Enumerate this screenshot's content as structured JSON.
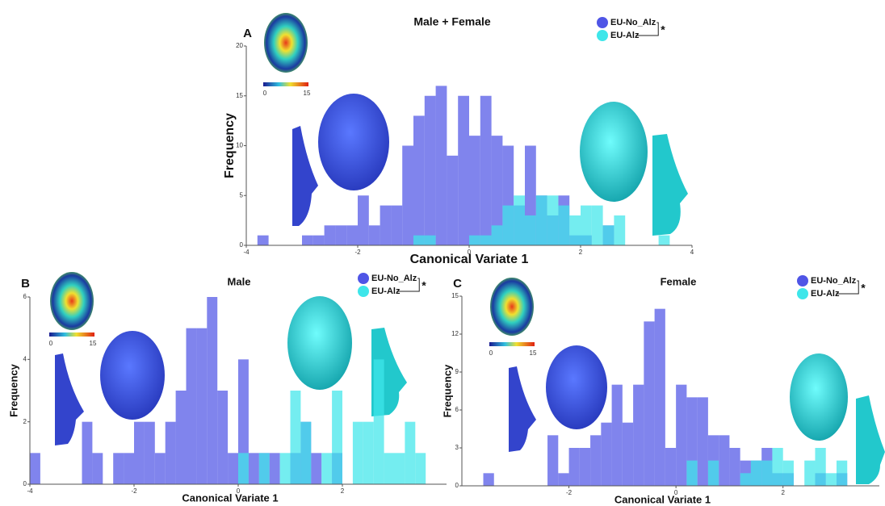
{
  "chart_data": [
    {
      "type": "histogram",
      "panel_label": "A",
      "title": "Male + Female",
      "x_label": "Canonical Variate 1",
      "y_label": "Frequency",
      "bins": [
        -4,
        -3.8,
        -3.6,
        -3.4,
        -3.2,
        -3,
        -2.8,
        -2.6,
        -2.4,
        -2.2,
        -2,
        -1.8,
        -1.6,
        -1.4,
        -1.2,
        -1,
        -0.8,
        -0.6,
        -0.4,
        -0.2,
        0,
        0.2,
        0.4,
        0.6,
        0.8,
        1,
        1.2,
        1.4,
        1.6,
        1.8,
        2,
        2.2,
        2.4,
        2.6,
        2.8,
        3,
        3.2,
        3.4,
        3.6,
        3.8,
        4
      ],
      "series": [
        {
          "name": "EU-No_Alz",
          "color": "#4f55e6",
          "values": [
            0,
            1,
            0,
            0,
            0,
            1,
            1,
            2,
            2,
            2,
            5,
            2,
            4,
            4,
            10,
            13,
            15,
            16,
            9,
            15,
            11,
            15,
            11,
            10,
            4,
            10,
            5,
            3,
            5,
            1,
            1,
            0,
            2,
            0,
            0,
            0,
            0,
            0,
            0,
            0
          ]
        },
        {
          "name": "EU-Alz",
          "color": "#3ee6ea",
          "values": [
            0,
            0,
            0,
            0,
            0,
            0,
            0,
            0,
            0,
            0,
            0,
            0,
            0,
            0,
            0,
            1,
            1,
            0,
            0,
            0,
            1,
            1,
            2,
            4,
            5,
            3,
            5,
            5,
            4,
            3,
            4,
            4,
            2,
            3,
            0,
            0,
            0,
            1,
            0,
            0
          ]
        }
      ],
      "significance": "*",
      "colorbar_labels": [
        "0",
        "15"
      ],
      "xlim": [
        -4,
        4
      ],
      "xticks": [
        -4,
        -2,
        0,
        2,
        4
      ],
      "ylim": [
        0,
        20
      ],
      "yticks": [
        0,
        5,
        10,
        15,
        20
      ]
    },
    {
      "type": "histogram",
      "panel_label": "B",
      "title": "Male",
      "x_label": "Canonical Variate 1",
      "y_label": "Frequency",
      "bins": [
        -4,
        -3.8,
        -3.6,
        -3.4,
        -3.2,
        -3,
        -2.8,
        -2.6,
        -2.4,
        -2.2,
        -2,
        -1.8,
        -1.6,
        -1.4,
        -1.2,
        -1,
        -0.8,
        -0.6,
        -0.4,
        -0.2,
        0,
        0.2,
        0.4,
        0.6,
        0.8,
        1,
        1.2,
        1.4,
        1.6,
        1.8,
        2,
        2.2,
        2.4,
        2.6,
        2.8,
        3,
        3.2,
        3.4,
        3.6,
        3.8,
        4
      ],
      "series": [
        {
          "name": "EU-No_Alz",
          "color": "#4f55e6",
          "values": [
            1,
            0,
            0,
            0,
            0,
            2,
            1,
            0,
            1,
            1,
            2,
            2,
            1,
            2,
            3,
            5,
            5,
            6,
            3,
            1,
            4,
            1,
            1,
            1,
            0,
            1,
            2,
            1,
            0,
            1,
            0,
            0,
            0,
            0,
            0,
            0,
            0,
            0,
            0,
            0
          ]
        },
        {
          "name": "EU-Alz",
          "color": "#3ee6ea",
          "values": [
            0,
            0,
            0,
            0,
            0,
            0,
            0,
            0,
            0,
            0,
            0,
            0,
            0,
            0,
            0,
            0,
            0,
            0,
            0,
            0,
            1,
            0,
            1,
            0,
            1,
            3,
            2,
            0,
            1,
            3,
            0,
            2,
            2,
            4,
            1,
            1,
            2,
            1,
            0,
            0
          ]
        }
      ],
      "significance": "*",
      "colorbar_labels": [
        "0",
        "15"
      ],
      "xlim": [
        -4,
        4
      ],
      "xticks": [
        -4,
        -2,
        0,
        2
      ],
      "ylim": [
        0,
        6
      ],
      "yticks": [
        0,
        2,
        4,
        6
      ]
    },
    {
      "type": "histogram",
      "panel_label": "C",
      "title": "Female",
      "x_label": "Canonical Variate 1",
      "y_label": "Frequency",
      "bins": [
        -4,
        -3.8,
        -3.6,
        -3.4,
        -3.2,
        -3,
        -2.8,
        -2.6,
        -2.4,
        -2.2,
        -2,
        -1.8,
        -1.6,
        -1.4,
        -1.2,
        -1,
        -0.8,
        -0.6,
        -0.4,
        -0.2,
        0,
        0.2,
        0.4,
        0.6,
        0.8,
        1,
        1.2,
        1.4,
        1.6,
        1.8,
        2,
        2.2,
        2.4,
        2.6,
        2.8,
        3,
        3.2,
        3.4,
        3.6,
        3.8
      ],
      "series": [
        {
          "name": "EU-No_Alz",
          "color": "#4f55e6",
          "values": [
            0,
            0,
            1,
            0,
            0,
            0,
            0,
            0,
            4,
            1,
            3,
            3,
            4,
            5,
            8,
            5,
            8,
            13,
            14,
            3,
            8,
            7,
            7,
            4,
            4,
            3,
            2,
            2,
            3,
            1,
            1,
            0,
            0,
            1,
            0,
            1,
            0,
            0,
            0
          ]
        },
        {
          "name": "EU-Alz",
          "color": "#3ee6ea",
          "values": [
            0,
            0,
            0,
            0,
            0,
            0,
            0,
            0,
            0,
            0,
            0,
            0,
            0,
            0,
            0,
            0,
            0,
            0,
            0,
            0,
            0,
            2,
            0,
            2,
            0,
            0,
            1,
            2,
            2,
            3,
            2,
            0,
            2,
            3,
            1,
            2,
            0,
            0,
            0
          ]
        }
      ],
      "significance": "*",
      "colorbar_labels": [
        "0",
        "15"
      ],
      "xlim": [
        -4,
        3.8
      ],
      "xticks": [
        -2,
        0,
        2
      ],
      "ylim": [
        0,
        15
      ],
      "yticks": [
        0,
        3,
        6,
        9,
        12,
        15
      ]
    }
  ]
}
